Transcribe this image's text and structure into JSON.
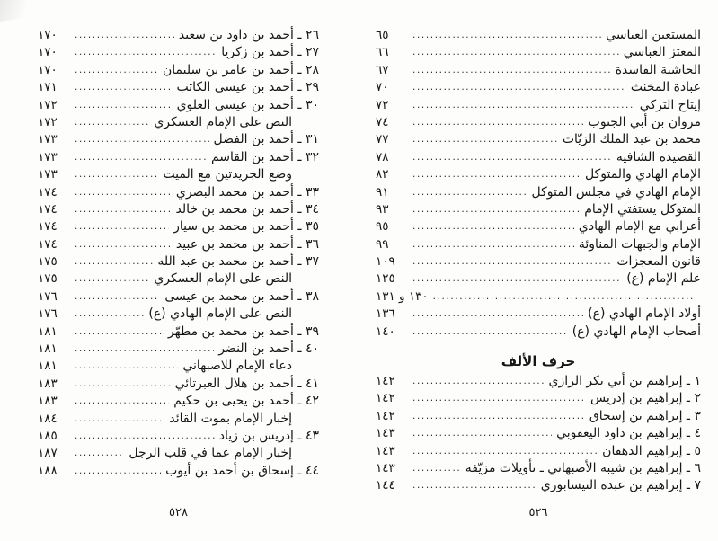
{
  "right_page": {
    "folio": "٥٢٦",
    "sections": [
      {
        "header": null,
        "entries": [
          {
            "text": "المستعين العباسي",
            "page": "٦٥",
            "indent": false
          },
          {
            "text": "المعتز العباسي",
            "page": "٦٦",
            "indent": false
          },
          {
            "text": "الحاشية الفاسدة",
            "page": "٦٧",
            "indent": false
          },
          {
            "text": "عبادة المخنث",
            "page": "٧٠",
            "indent": false
          },
          {
            "text": "إيتاخ التركي",
            "page": "٧٢",
            "indent": false
          },
          {
            "text": "مروان بن أبي الجنوب",
            "page": "٧٤",
            "indent": false
          },
          {
            "text": "محمد بن عبد الملك الزيّات",
            "page": "٧٧",
            "indent": false
          },
          {
            "text": "القصيدة الشافية",
            "page": "٧٨",
            "indent": false
          },
          {
            "text": "الإمام الهادي والمتوكل",
            "page": "٨٢",
            "indent": false
          },
          {
            "text": "الإمام الهادي في مجلس المتوكل",
            "page": "٩١",
            "indent": false
          },
          {
            "text": "المتوكل يستفتي الإمام",
            "page": "٩٣",
            "indent": false
          },
          {
            "text": "أعرابي مع الإمام الهادي",
            "page": "٩٥",
            "indent": false
          },
          {
            "text": "الإمام والجبهات المناوئة",
            "page": "٩٩",
            "indent": false
          },
          {
            "text": "قانون المعجزات",
            "page": "١٠٩",
            "indent": false
          },
          {
            "text": "علم الإمام (ع)",
            "page": "١٢٥",
            "indent": false
          },
          {
            "text": "",
            "page": "١٣٠ و ١٣١",
            "indent": false
          },
          {
            "text": "أولاد الإمام الهادي (ع)",
            "page": "١٣٦",
            "indent": false
          },
          {
            "text": "أصحاب الإمام الهادي (ع)",
            "page": "١٤٠",
            "indent": false
          }
        ]
      },
      {
        "header": "حرف الألف",
        "entries": [
          {
            "text": "١ ـ إبراهيم بن أبي بكر الرازي",
            "page": "١٤٢",
            "indent": false
          },
          {
            "text": "٢ ـ إبراهيم بن إدريس",
            "page": "١٤٢",
            "indent": false
          },
          {
            "text": "٣ ـ إبراهيم بن إسحاق",
            "page": "١٤٢",
            "indent": false
          },
          {
            "text": "٤ ـ إبراهيم بن داود اليعقوبي",
            "page": "١٤٣",
            "indent": false
          },
          {
            "text": "٥ ـ إبراهيم الدهقان",
            "page": "١٤٣",
            "indent": false
          },
          {
            "text": "٦ ـ إبراهيم بن شيبة الأصبهاني ـ تأويلات مزيّفة",
            "page": "١٤٣",
            "indent": false
          },
          {
            "text": "٧ ـ إبراهيم بن عبده النيسابوري",
            "page": "١٤٤",
            "indent": false
          }
        ]
      }
    ]
  },
  "left_page": {
    "folio": "٥٢٨",
    "sections": [
      {
        "header": null,
        "entries": [
          {
            "text": "٢٦ ـ أحمد بن داود بن سعيد",
            "page": "١٧٠",
            "indent": false
          },
          {
            "text": "٢٧ ـ أحمد بن زكريا",
            "page": "١٧٠",
            "indent": false
          },
          {
            "text": "٢٨ ـ أحمد بن عامر بن سليمان",
            "page": "١٧٠",
            "indent": false
          },
          {
            "text": "٢٩ ـ أحمد بن عيسى الكاتب",
            "page": "١٧١",
            "indent": false
          },
          {
            "text": "٣٠ ـ أحمد بن عيسى العلوي",
            "page": "١٧٢",
            "indent": false
          },
          {
            "text": "النص على الإمام العسكري",
            "page": "١٧٢",
            "indent": true
          },
          {
            "text": "٣١ ـ أحمد بن الفضل",
            "page": "١٧٣",
            "indent": false
          },
          {
            "text": "٣٢ ـ أحمد بن القاسم",
            "page": "١٧٣",
            "indent": false
          },
          {
            "text": "وضع الجريدتين مع الميت",
            "page": "١٧٣",
            "indent": true
          },
          {
            "text": "٣٣ ـ أحمد بن محمد البصري",
            "page": "١٧٤",
            "indent": false
          },
          {
            "text": "٣٤ ـ أحمد بن محمد بن خالد",
            "page": "١٧٤",
            "indent": false
          },
          {
            "text": "٣٥ ـ أحمد بن محمد بن سيار",
            "page": "١٧٤",
            "indent": false
          },
          {
            "text": "٣٦ ـ أحمد بن محمد بن عبيد",
            "page": "١٧٤",
            "indent": false
          },
          {
            "text": "٣٧ ـ أحمد بن محمد بن عبد الله",
            "page": "١٧٥",
            "indent": false
          },
          {
            "text": "النص على الإمام العسكري",
            "page": "١٧٥",
            "indent": true
          },
          {
            "text": "٣٨ ـ أحمد بن محمد بن عيسى",
            "page": "١٧٦",
            "indent": false
          },
          {
            "text": "النص على الإمام الهادي (ع)",
            "page": "١٧٦",
            "indent": true
          },
          {
            "text": "٣٩ ـ أحمد بن محمد بن مطهّر",
            "page": "١٨١",
            "indent": false
          },
          {
            "text": "٤٠ ـ أحمد بن النضر",
            "page": "١٨١",
            "indent": false
          },
          {
            "text": "دعاء الإمام للاصبهاني",
            "page": "١٨١",
            "indent": true
          },
          {
            "text": "٤١ ـ أحمد بن هلال العبرتائي",
            "page": "١٨٣",
            "indent": false
          },
          {
            "text": "٤٢ ـ أحمد بن يحيى بن حكيم",
            "page": "١٨٣",
            "indent": false
          },
          {
            "text": "إخبار الإمام بموت القائد",
            "page": "١٨٤",
            "indent": true
          },
          {
            "text": "٤٣ ـ إدريس بن زياد",
            "page": "١٨٥",
            "indent": false
          },
          {
            "text": "إخبار الإمام عما في قلب الرجل",
            "page": "١٨٧",
            "indent": true
          },
          {
            "text": "٤٤ ـ إسحاق بن أحمد بن أيوب",
            "page": "١٨٨",
            "indent": false
          }
        ]
      }
    ]
  }
}
